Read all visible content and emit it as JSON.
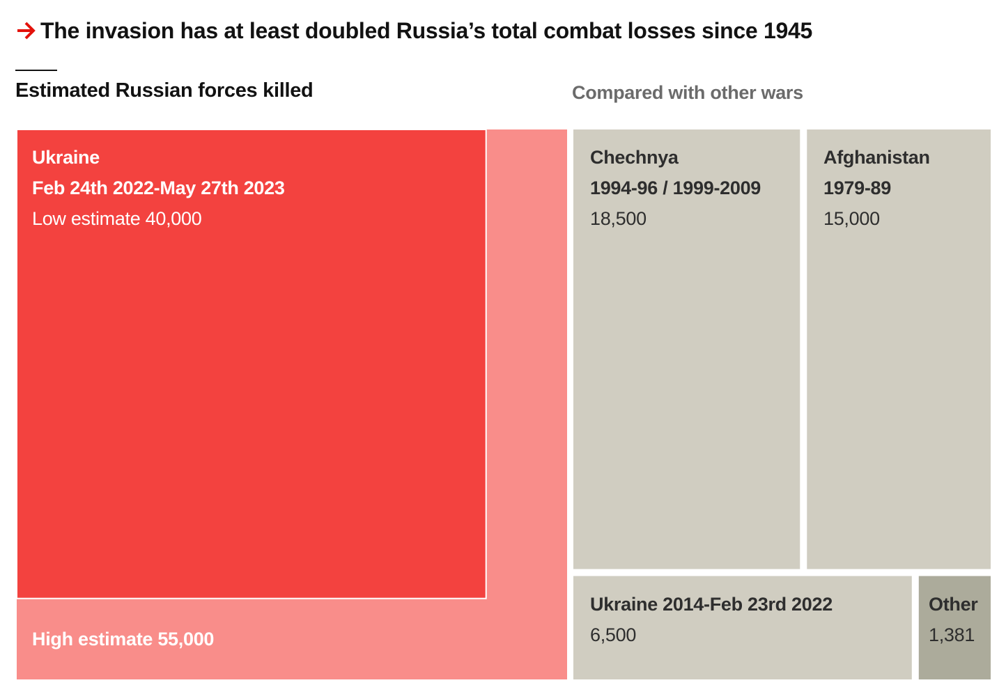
{
  "header": {
    "title": "The invasion has at least doubled Russia’s total combat losses since 1945",
    "left_subtitle": "Estimated Russian forces killed",
    "right_subtitle": "Compared with other wars"
  },
  "colors": {
    "accent_red": "#e3120b",
    "ukraine_low": "#f3423f",
    "ukraine_high": "#f98d8a",
    "other_wars": "#d0cdc1",
    "other_small": "#acab9b"
  },
  "chart_data": {
    "type": "treemap",
    "title": "The invasion has at least doubled Russia’s total combat losses since 1945",
    "unit": "Estimated Russian forces killed",
    "ukraine_invasion": {
      "name": "Ukraine",
      "period": "Feb 24th 2022-May 27th 2023",
      "low_estimate": 40000,
      "low_label": "Low estimate 40,000",
      "high_estimate": 55000,
      "high_label": "High estimate 55,000"
    },
    "other_wars": [
      {
        "name": "Chechnya",
        "period": "1994-96 / 1999-2009",
        "value": 18500,
        "value_label": "18,500"
      },
      {
        "name": "Afghanistan",
        "period": "1979-89",
        "value": 15000,
        "value_label": "15,000"
      },
      {
        "name": "Ukraine 2014-Feb 23rd 2022",
        "period": "",
        "value": 6500,
        "value_label": "6,500"
      },
      {
        "name": "Other",
        "period": "",
        "value": 1381,
        "value_label": "1,381"
      }
    ]
  }
}
